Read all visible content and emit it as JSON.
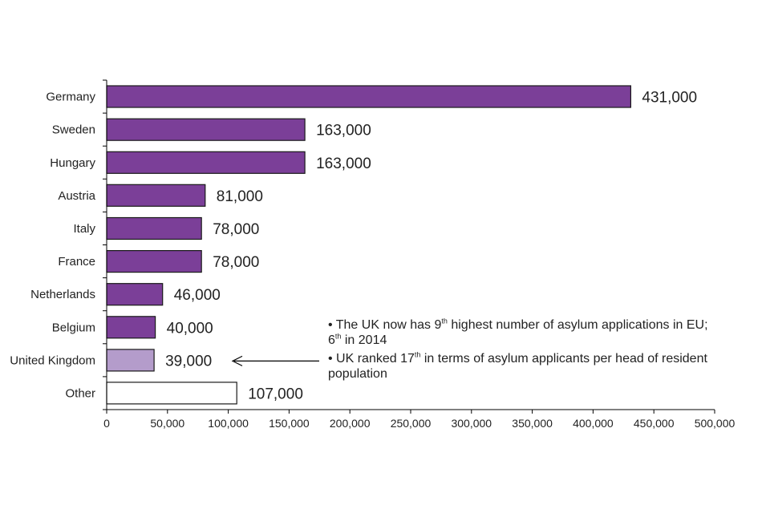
{
  "chart_data": {
    "type": "bar",
    "orientation": "horizontal",
    "categories": [
      "Germany",
      "Sweden",
      "Hungary",
      "Austria",
      "Italy",
      "France",
      "Netherlands",
      "Belgium",
      "United Kingdom",
      "Other"
    ],
    "values": [
      431000,
      163000,
      163000,
      81000,
      78000,
      78000,
      46000,
      40000,
      39000,
      107000
    ],
    "value_labels": [
      "431,000",
      "163,000",
      "163,000",
      "81,000",
      "78,000",
      "78,000",
      "46,000",
      "40,000",
      "39,000",
      "107,000"
    ],
    "bar_colors": [
      "#7b3f98",
      "#7b3f98",
      "#7b3f98",
      "#7b3f98",
      "#7b3f98",
      "#7b3f98",
      "#7b3f98",
      "#7b3f98",
      "#b49ccb",
      "#ffffff"
    ],
    "xlim": [
      0,
      500000
    ],
    "xticks": [
      0,
      50000,
      100000,
      150000,
      200000,
      250000,
      300000,
      350000,
      400000,
      450000,
      500000
    ],
    "xtick_labels": [
      "0",
      "50,000",
      "100,000",
      "150,000",
      "200,000",
      "250,000",
      "300,000",
      "350,000",
      "400,000",
      "450,000",
      "500,000"
    ],
    "grid": false,
    "title": "",
    "xlabel": "",
    "ylabel": ""
  },
  "annotation": {
    "line1_pre": "• The UK now has 9",
    "line1_sup": "th",
    "line1_post": " highest number of asylum applications in EU;",
    "line2_pre": "6",
    "line2_sup": "th",
    "line2_post": " in 2014",
    "line3_pre": "• UK ranked 17",
    "line3_sup": "th",
    "line3_post": " in terms of asylum applicants per head of resident",
    "line4": "population",
    "arrow_target": "United Kingdom"
  }
}
